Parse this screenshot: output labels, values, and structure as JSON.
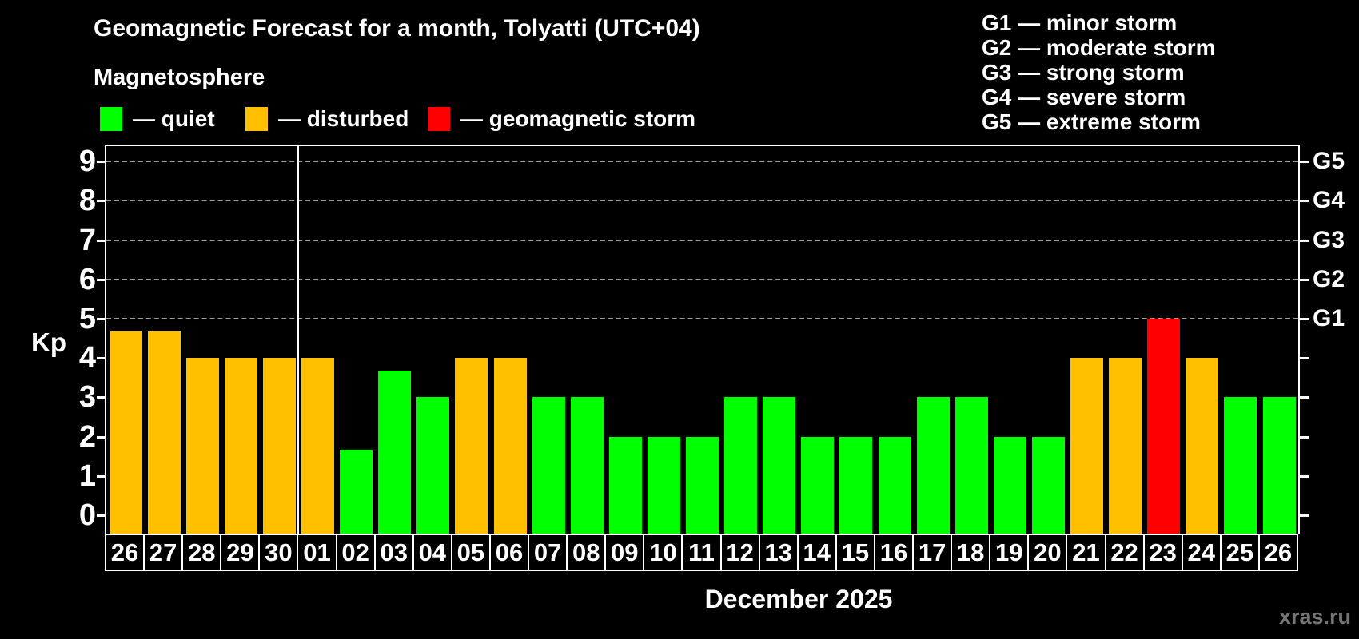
{
  "title": "Geomagnetic Forecast for a month, Tolyatti (UTC+04)",
  "subtitle": "Magnetosphere",
  "legend": [
    {
      "key": "quiet",
      "label": "— quiet",
      "color": "#00ff00"
    },
    {
      "key": "disturbed",
      "label": "— disturbed",
      "color": "#ffc000"
    },
    {
      "key": "storm",
      "label": "— geomagnetic storm",
      "color": "#ff0000"
    }
  ],
  "storm_scale": [
    "G1 — minor storm",
    "G2 — moderate storm",
    "G3 — strong storm",
    "G4 — severe storm",
    "G5 — extreme storm"
  ],
  "watermark": "xras.ru",
  "chart_data": {
    "type": "bar",
    "title": "Geomagnetic Forecast for a month, Tolyatti (UTC+04)",
    "ylabel": "Kp",
    "xlabel": "December 2025",
    "ylim": [
      0,
      9
    ],
    "y_ticks": [
      0,
      1,
      2,
      3,
      4,
      5,
      6,
      7,
      8,
      9
    ],
    "gridlines_at": [
      5,
      6,
      7,
      8,
      9
    ],
    "right_axis_labels": [
      {
        "value": 5,
        "label": "G1"
      },
      {
        "value": 6,
        "label": "G2"
      },
      {
        "value": 7,
        "label": "G3"
      },
      {
        "value": 8,
        "label": "G4"
      },
      {
        "value": 9,
        "label": "G5"
      }
    ],
    "month_separator_after_index": 4,
    "categories": [
      "26",
      "27",
      "28",
      "29",
      "30",
      "01",
      "02",
      "03",
      "04",
      "05",
      "06",
      "07",
      "08",
      "09",
      "10",
      "11",
      "12",
      "13",
      "14",
      "15",
      "16",
      "17",
      "18",
      "19",
      "20",
      "21",
      "22",
      "23",
      "24",
      "25",
      "26"
    ],
    "values": [
      4.67,
      4.67,
      4,
      4,
      4,
      4,
      1.67,
      3.67,
      3,
      4,
      4,
      3,
      3,
      2,
      2,
      2,
      3,
      3,
      2,
      2,
      2,
      3,
      3,
      2,
      2,
      4,
      4,
      5,
      4,
      3,
      3
    ],
    "statuses": [
      "disturbed",
      "disturbed",
      "disturbed",
      "disturbed",
      "disturbed",
      "disturbed",
      "quiet",
      "quiet",
      "quiet",
      "disturbed",
      "disturbed",
      "quiet",
      "quiet",
      "quiet",
      "quiet",
      "quiet",
      "quiet",
      "quiet",
      "quiet",
      "quiet",
      "quiet",
      "quiet",
      "quiet",
      "quiet",
      "quiet",
      "disturbed",
      "disturbed",
      "storm",
      "disturbed",
      "quiet",
      "quiet"
    ],
    "status_colors": {
      "quiet": "#00ff00",
      "disturbed": "#ffc000",
      "storm": "#ff0000"
    }
  }
}
